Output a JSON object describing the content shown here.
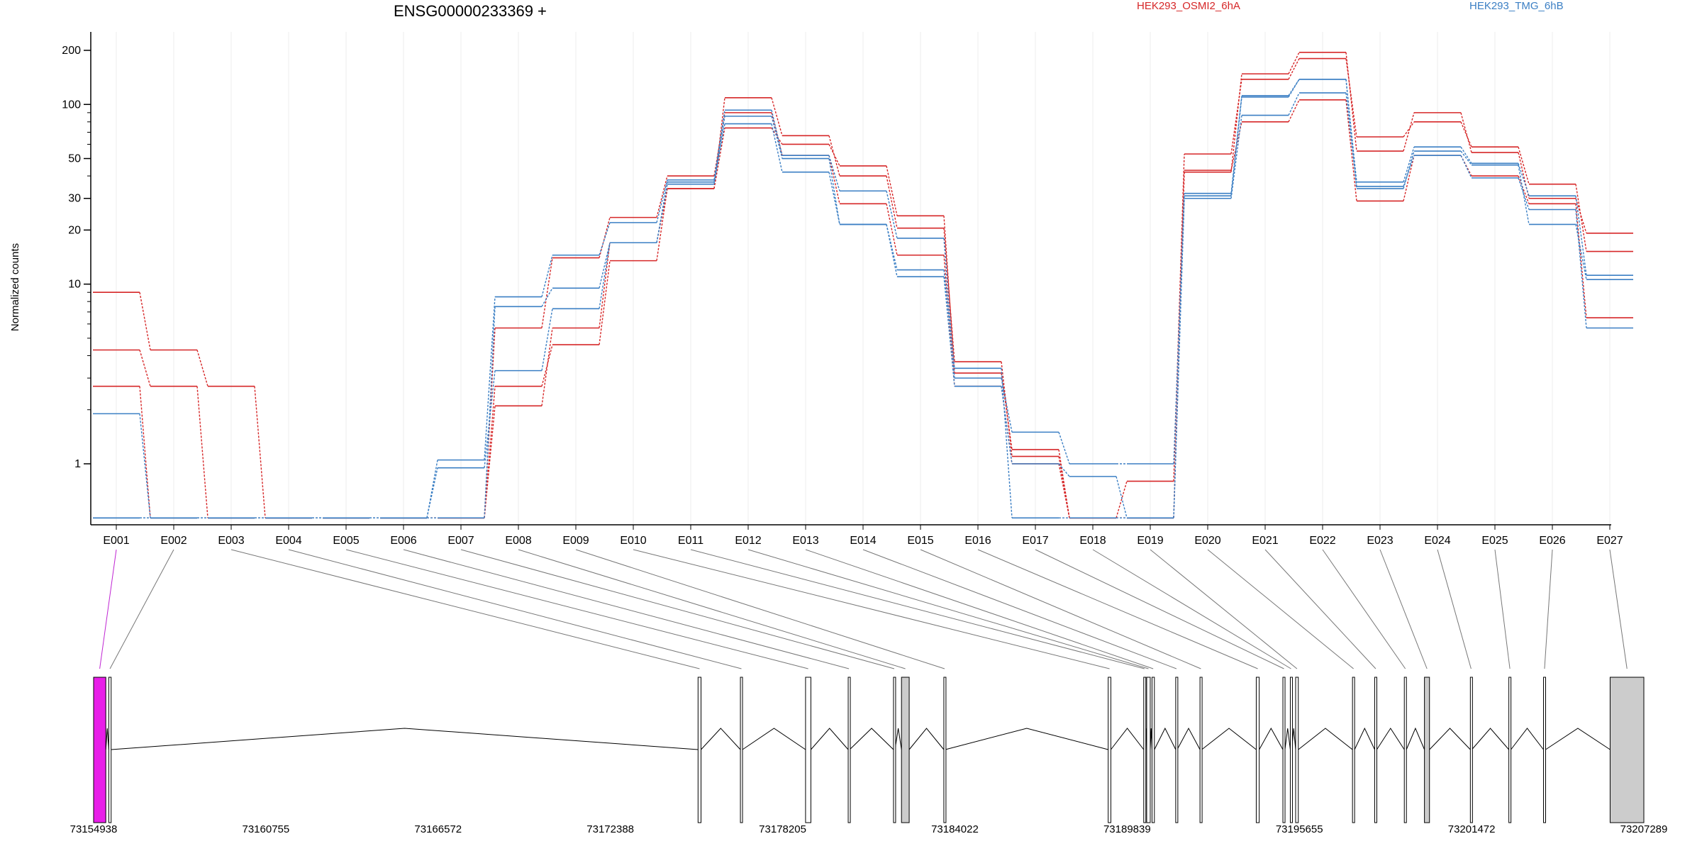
{
  "chart_data": {
    "type": "line",
    "title": "ENSG00000233369 +",
    "ylabel": "Normalized counts",
    "yscale": "log",
    "ylim": [
      0.5,
      250
    ],
    "yticks": [
      1,
      10,
      20,
      30,
      50,
      100,
      200
    ],
    "categories": [
      "E001",
      "E002",
      "E003",
      "E004",
      "E005",
      "E006",
      "E007",
      "E008",
      "E009",
      "E010",
      "E011",
      "E012",
      "E013",
      "E014",
      "E015",
      "E016",
      "E017",
      "E018",
      "E019",
      "E020",
      "E021",
      "E022",
      "E023",
      "E024",
      "E025",
      "E026",
      "E027"
    ],
    "legend": [
      {
        "name": "HEK293_OSMI2_6hA",
        "color": "#d62728"
      },
      {
        "name": "HEK293_TMG_6hB",
        "color": "#3b7fc4"
      }
    ],
    "series": [
      {
        "group": "HEK293_OSMI2_6hA",
        "color": "#d62728",
        "values": [
          9,
          4.3,
          2.7,
          0.5,
          0.5,
          0.5,
          0.5,
          2.1,
          5.7,
          17,
          34,
          109,
          67,
          40,
          20.5,
          3.7,
          1.1,
          0.5,
          0.5,
          42,
          148,
          195,
          55,
          90,
          54,
          30,
          19.2
        ]
      },
      {
        "group": "HEK293_OSMI2_6hA",
        "color": "#d62728",
        "values": [
          4.3,
          2.7,
          0.5,
          0.5,
          0.5,
          0.5,
          0.5,
          2.7,
          4.6,
          13.5,
          34,
          74,
          60,
          45.5,
          24,
          3.2,
          1.2,
          0.5,
          0.8,
          53,
          138,
          180,
          66,
          80,
          58,
          36,
          15.2
        ]
      },
      {
        "group": "HEK293_OSMI2_6hA",
        "color": "#d62728",
        "values": [
          2.7,
          0.5,
          0.5,
          0.5,
          0.5,
          0.5,
          0.5,
          5.7,
          14,
          23.5,
          40,
          90,
          52,
          28,
          14.5,
          2.7,
          1.0,
          0.5,
          0.5,
          43,
          80,
          106,
          29,
          52,
          40,
          28,
          6.5
        ]
      },
      {
        "group": "HEK293_TMG_6hB",
        "color": "#3b7fc4",
        "values": [
          1.9,
          0.5,
          0.5,
          0.5,
          0.5,
          0.5,
          1.05,
          8.5,
          14.5,
          22,
          38,
          93,
          52,
          33,
          18,
          3.0,
          1.5,
          1.0,
          1.0,
          32,
          112,
          138,
          37,
          58,
          47,
          31,
          11.2
        ]
      },
      {
        "group": "HEK293_TMG_6hB",
        "color": "#3b7fc4",
        "values": [
          0.5,
          0.5,
          0.5,
          0.5,
          0.5,
          0.5,
          0.95,
          3.3,
          7.3,
          17,
          37,
          78,
          42,
          21.5,
          11,
          2.7,
          1.0,
          0.85,
          0.5,
          30,
          87,
          116,
          35,
          52,
          39,
          26,
          5.7
        ]
      },
      {
        "group": "HEK293_TMG_6hB",
        "color": "#3b7fc4",
        "values": [
          0.5,
          0.5,
          0.5,
          0.5,
          0.5,
          0.5,
          0.5,
          7.5,
          9.5,
          17,
          36,
          86,
          50,
          21.5,
          12,
          3.4,
          0.5,
          0.5,
          0.5,
          31,
          110,
          138,
          34,
          55,
          46,
          21.5,
          10.6
        ]
      }
    ],
    "genome_coords": [
      "73154938",
      "73160755",
      "73166572",
      "73172388",
      "73178205",
      "73184022",
      "73189839",
      "73195655",
      "73201472",
      "73207289"
    ],
    "genome_range": [
      73154938,
      73207289
    ],
    "exons": [
      {
        "id": "E001",
        "start": 73154938,
        "end": 73155350,
        "fill": "#e81ee8"
      },
      {
        "id": "E002",
        "start": 73155450,
        "end": 73155530,
        "fill": "#ffffff"
      },
      {
        "id": "E003",
        "start": 73175350,
        "end": 73175450,
        "fill": "#ffffff"
      },
      {
        "id": "E004",
        "start": 73176780,
        "end": 73176850,
        "fill": "#ffffff"
      },
      {
        "id": "E005",
        "start": 73178980,
        "end": 73179160,
        "fill": "#ffffff"
      },
      {
        "id": "E006",
        "start": 73180420,
        "end": 73180470,
        "fill": "#ffffff"
      },
      {
        "id": "E007",
        "start": 73181950,
        "end": 73182000,
        "fill": "#ffffff"
      },
      {
        "id": "E008",
        "start": 73182220,
        "end": 73182480,
        "fill": "#cccccc"
      },
      {
        "id": "E009",
        "start": 73183650,
        "end": 73183700,
        "fill": "#ffffff"
      },
      {
        "id": "E010",
        "start": 73189200,
        "end": 73189290,
        "fill": "#ffffff"
      },
      {
        "id": "E011",
        "start": 73190400,
        "end": 73190450,
        "fill": "#ffffff"
      },
      {
        "id": "E012",
        "start": 73190500,
        "end": 73190620,
        "fill": "#ffffff"
      },
      {
        "id": "E013",
        "start": 73190680,
        "end": 73190760,
        "fill": "#ffffff"
      },
      {
        "id": "E014",
        "start": 73191480,
        "end": 73191530,
        "fill": "#ffffff"
      },
      {
        "id": "E015",
        "start": 73192300,
        "end": 73192360,
        "fill": "#ffffff"
      },
      {
        "id": "E016",
        "start": 73194200,
        "end": 73194300,
        "fill": "#ffffff"
      },
      {
        "id": "E017",
        "start": 73195100,
        "end": 73195170,
        "fill": "#ffffff"
      },
      {
        "id": "E018",
        "start": 73195350,
        "end": 73195400,
        "fill": "#ffffff"
      },
      {
        "id": "E019",
        "start": 73195530,
        "end": 73195620,
        "fill": "#ffffff"
      },
      {
        "id": "E020",
        "start": 73197450,
        "end": 73197520,
        "fill": "#ffffff"
      },
      {
        "id": "E021",
        "start": 73198200,
        "end": 73198270,
        "fill": "#ffffff"
      },
      {
        "id": "E022",
        "start": 73199200,
        "end": 73199270,
        "fill": "#ffffff"
      },
      {
        "id": "E023",
        "start": 73199880,
        "end": 73200050,
        "fill": "#cccccc"
      },
      {
        "id": "E024",
        "start": 73201430,
        "end": 73201480,
        "fill": "#ffffff"
      },
      {
        "id": "E025",
        "start": 73202730,
        "end": 73202800,
        "fill": "#ffffff"
      },
      {
        "id": "E026",
        "start": 73203900,
        "end": 73203970,
        "fill": "#ffffff"
      },
      {
        "id": "E027",
        "start": 73206150,
        "end": 73207289,
        "fill": "#cccccc"
      }
    ]
  }
}
